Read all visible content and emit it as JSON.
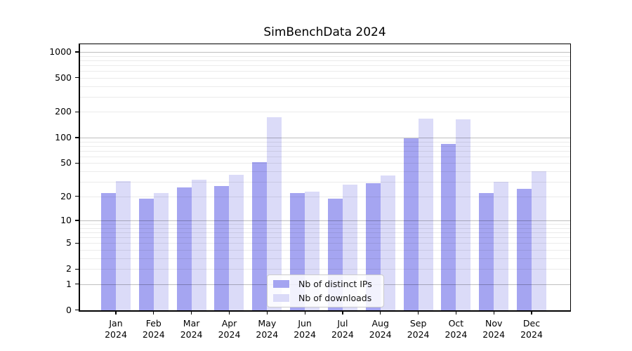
{
  "title": "SimBenchData 2024",
  "legend": {
    "items": [
      {
        "label": "Nb of distinct IPs"
      },
      {
        "label": "Nb of downloads"
      }
    ]
  },
  "chart_data": {
    "type": "bar",
    "title": "SimBenchData 2024",
    "categories": [
      "Jan 2024",
      "Feb 2024",
      "Mar 2024",
      "Apr 2024",
      "May 2024",
      "Jun 2024",
      "Jul 2024",
      "Aug 2024",
      "Sep 2024",
      "Oct 2024",
      "Nov 2024",
      "Dec 2024"
    ],
    "months": [
      "Jan",
      "Feb",
      "Mar",
      "Apr",
      "May",
      "Jun",
      "Jul",
      "Aug",
      "Sep",
      "Oct",
      "Nov",
      "Dec"
    ],
    "year_label": "2024",
    "series": [
      {
        "name": "Nb of distinct IPs",
        "color": "#a5a5f1",
        "values": [
          22,
          19,
          26,
          27,
          52,
          22,
          19,
          29,
          100,
          85,
          22,
          25
        ]
      },
      {
        "name": "Nb of downloads",
        "color": "#dbdbf8",
        "values": [
          31,
          22,
          32,
          37,
          175,
          23,
          28,
          36,
          167,
          165,
          30,
          40
        ]
      }
    ],
    "xlabel": "",
    "ylabel": "",
    "yscale": "log1p",
    "ylim": [
      0,
      1230
    ],
    "y_ticks": [
      0,
      1,
      2,
      5,
      10,
      20,
      50,
      100,
      200,
      500,
      1000
    ],
    "y_major_gridlines": [
      1,
      10,
      100,
      1000
    ],
    "y_minor_gridlines": [
      2,
      3,
      4,
      5,
      6,
      7,
      8,
      9,
      20,
      30,
      40,
      50,
      60,
      70,
      80,
      90,
      200,
      300,
      400,
      500,
      600,
      700,
      800,
      900
    ],
    "grid": "horizontal major+minor, drawn over bars",
    "legend_position": "lower center"
  }
}
